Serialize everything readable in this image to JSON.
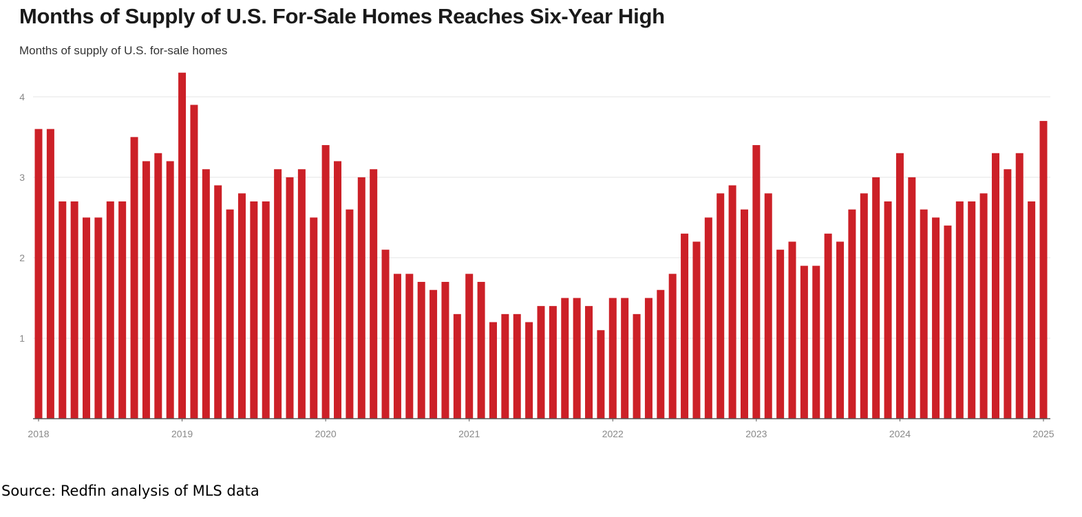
{
  "header": {
    "title": "Months of Supply of U.S. For-Sale Homes Reaches Six-Year High",
    "subtitle": "Months of supply of U.S. for-sale homes"
  },
  "footer": {
    "source": "Source: Redfin analysis of MLS data"
  },
  "colors": {
    "bar": "#cc2027",
    "grid": "#e4e4e4",
    "axis": "#555555",
    "tick_text": "#888888"
  },
  "chart_data": {
    "type": "bar",
    "title": "Months of Supply of U.S. For-Sale Homes Reaches Six-Year High",
    "subtitle": "Months of supply of U.S. for-sale homes",
    "xlabel": "",
    "ylabel": "",
    "ylim": [
      0,
      4.4
    ],
    "yticks": [
      1,
      2,
      3,
      4
    ],
    "grid": true,
    "legend": "none",
    "x_start": "2018-01",
    "x_end": "2025-01",
    "x_tick_labels": [
      "2018",
      "2019",
      "2020",
      "2021",
      "2022",
      "2023",
      "2024",
      "2025"
    ],
    "categories": [
      "2018-01",
      "2018-02",
      "2018-03",
      "2018-04",
      "2018-05",
      "2018-06",
      "2018-07",
      "2018-08",
      "2018-09",
      "2018-10",
      "2018-11",
      "2018-12",
      "2019-01",
      "2019-02",
      "2019-03",
      "2019-04",
      "2019-05",
      "2019-06",
      "2019-07",
      "2019-08",
      "2019-09",
      "2019-10",
      "2019-11",
      "2019-12",
      "2020-01",
      "2020-02",
      "2020-03",
      "2020-04",
      "2020-05",
      "2020-06",
      "2020-07",
      "2020-08",
      "2020-09",
      "2020-10",
      "2020-11",
      "2020-12",
      "2021-01",
      "2021-02",
      "2021-03",
      "2021-04",
      "2021-05",
      "2021-06",
      "2021-07",
      "2021-08",
      "2021-09",
      "2021-10",
      "2021-11",
      "2021-12",
      "2022-01",
      "2022-02",
      "2022-03",
      "2022-04",
      "2022-05",
      "2022-06",
      "2022-07",
      "2022-08",
      "2022-09",
      "2022-10",
      "2022-11",
      "2022-12",
      "2023-01",
      "2023-02",
      "2023-03",
      "2023-04",
      "2023-05",
      "2023-06",
      "2023-07",
      "2023-08",
      "2023-09",
      "2023-10",
      "2023-11",
      "2023-12",
      "2024-01",
      "2024-02",
      "2024-03",
      "2024-04",
      "2024-05",
      "2024-06",
      "2024-07",
      "2024-08",
      "2024-09",
      "2024-10",
      "2024-11",
      "2024-12",
      "2025-01"
    ],
    "values": [
      3.6,
      3.6,
      2.7,
      2.7,
      2.5,
      2.5,
      2.7,
      2.7,
      3.5,
      3.2,
      3.3,
      3.2,
      4.3,
      3.9,
      3.1,
      2.9,
      2.6,
      2.8,
      2.7,
      2.7,
      3.1,
      3.0,
      3.1,
      2.5,
      3.4,
      3.2,
      2.6,
      3.0,
      3.1,
      2.1,
      1.8,
      1.8,
      1.7,
      1.6,
      1.7,
      1.3,
      1.8,
      1.7,
      1.2,
      1.3,
      1.3,
      1.2,
      1.4,
      1.4,
      1.5,
      1.5,
      1.4,
      1.1,
      1.5,
      1.5,
      1.3,
      1.5,
      1.6,
      1.8,
      2.3,
      2.2,
      2.5,
      2.8,
      2.9,
      2.6,
      3.4,
      2.8,
      2.1,
      2.2,
      1.9,
      1.9,
      2.3,
      2.2,
      2.6,
      2.8,
      3.0,
      2.7,
      3.3,
      3.0,
      2.6,
      2.5,
      2.4,
      2.7,
      2.7,
      2.8,
      3.3,
      3.1,
      3.3,
      2.7,
      3.7
    ]
  }
}
